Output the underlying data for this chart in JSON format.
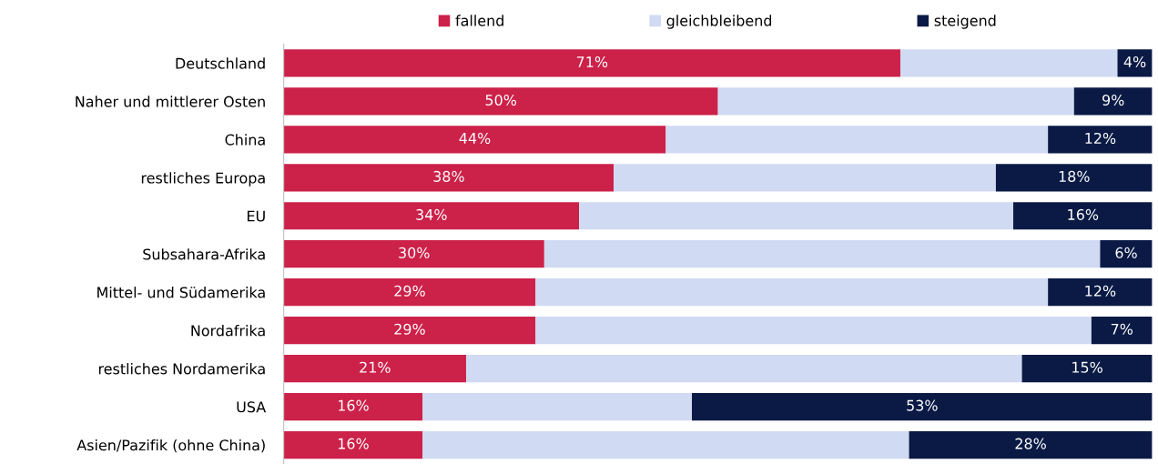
{
  "chart_data": {
    "type": "bar",
    "orientation": "horizontal",
    "stacked": true,
    "legend": "top",
    "grid": false,
    "tick_labels": "y",
    "xlim": [
      0,
      100
    ],
    "categories": [
      "Deutschland",
      "Naher und mittlerer Osten",
      "China",
      "restliches Europa",
      "EU",
      "Subsahara-Afrika",
      "Mittel- und Südamerika",
      "Nordafrika",
      "restliches Nordamerika",
      "USA",
      "Asien/Pazifik (ohne China)"
    ],
    "series": [
      {
        "name": "fallend",
        "color": "#cc2149",
        "values": [
          71,
          50,
          44,
          38,
          34,
          30,
          29,
          29,
          21,
          16,
          16
        ],
        "value_labels": [
          "71%",
          "50%",
          "44%",
          "38%",
          "34%",
          "30%",
          "29%",
          "29%",
          "21%",
          "16%",
          "16%"
        ]
      },
      {
        "name": "gleichbleibend",
        "color": "#d0daf2",
        "values": [
          25,
          41,
          44,
          44,
          50,
          64,
          59,
          64,
          64,
          31,
          56
        ],
        "value_labels": [
          null,
          null,
          null,
          null,
          null,
          null,
          null,
          null,
          null,
          null,
          null
        ]
      },
      {
        "name": "steigend",
        "color": "#0a1a45",
        "values": [
          4,
          9,
          12,
          18,
          16,
          6,
          12,
          7,
          15,
          53,
          28
        ],
        "value_labels": [
          "4%",
          "9%",
          "12%",
          "18%",
          "16%",
          "6%",
          "12%",
          "7%",
          "15%",
          "53%",
          "28%"
        ]
      }
    ]
  }
}
